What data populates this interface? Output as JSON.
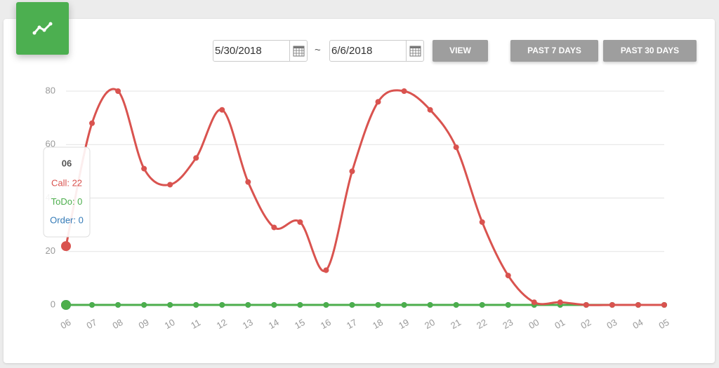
{
  "header": {
    "date_from": "5/30/2018",
    "separator": "~",
    "date_to": "6/6/2018",
    "buttons": [
      "VIEW",
      "PAST 7 DAYS",
      "PAST 30 DAYS"
    ]
  },
  "chart_data": {
    "type": "line",
    "categories": [
      "06",
      "07",
      "08",
      "09",
      "10",
      "11",
      "12",
      "13",
      "14",
      "15",
      "16",
      "17",
      "18",
      "19",
      "20",
      "21",
      "22",
      "23",
      "00",
      "01",
      "02",
      "03",
      "04",
      "05"
    ],
    "series": [
      {
        "name": "Call",
        "color": "#d9534f",
        "values": [
          22,
          68,
          80,
          51,
          45,
          55,
          73,
          46,
          29,
          31,
          13,
          50,
          76,
          80,
          73,
          59,
          31,
          11,
          1,
          1,
          0,
          0,
          0,
          0
        ]
      },
      {
        "name": "ToDo",
        "color": "#4cae4c",
        "values": [
          0,
          0,
          0,
          0,
          0,
          0,
          0,
          0,
          0,
          0,
          0,
          0,
          0,
          0,
          0,
          0,
          0,
          0,
          0,
          0,
          0,
          0,
          0,
          0
        ]
      },
      {
        "name": "Order",
        "color": "#337ab7",
        "values": [
          0,
          0,
          0,
          0,
          0,
          0,
          0,
          0,
          0,
          0,
          0,
          0,
          0,
          0,
          0,
          0,
          0,
          0,
          0,
          0,
          0,
          0,
          0,
          0
        ]
      }
    ],
    "ylim": [
      0,
      80
    ],
    "yticks": [
      0,
      20,
      40,
      60,
      80
    ],
    "grid": true,
    "tooltip": {
      "title": "06",
      "lines": [
        "Call: 22",
        "ToDo: 0",
        "Order: 0"
      ]
    }
  }
}
